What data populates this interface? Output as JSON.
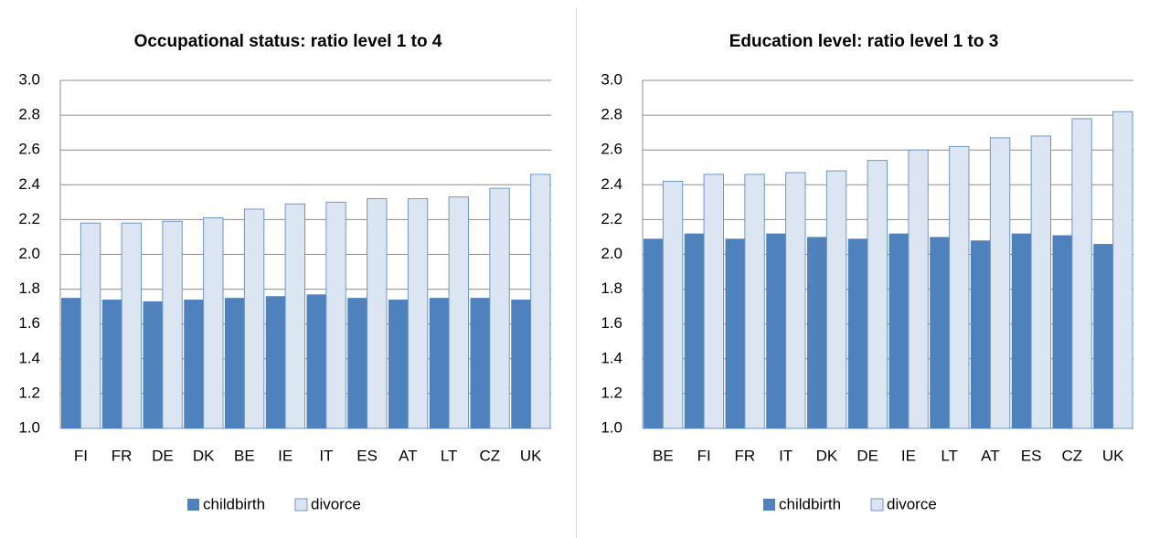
{
  "chart_data": [
    {
      "type": "bar",
      "title": "Occupational status: ratio level 1 to 4",
      "categories": [
        "FI",
        "FR",
        "DE",
        "DK",
        "BE",
        "IE",
        "IT",
        "ES",
        "AT",
        "LT",
        "CZ",
        "UK"
      ],
      "series": [
        {
          "name": "childbirth",
          "color": "#4f81bd",
          "values": [
            1.75,
            1.74,
            1.73,
            1.74,
            1.75,
            1.76,
            1.77,
            1.75,
            1.74,
            1.75,
            1.75,
            1.74
          ]
        },
        {
          "name": "divorce",
          "color": "#dce6f2",
          "values": [
            2.18,
            2.18,
            2.19,
            2.21,
            2.26,
            2.29,
            2.3,
            2.32,
            2.32,
            2.33,
            2.38,
            2.46
          ]
        }
      ],
      "bar_edgecolor": "#6f96c6",
      "ylim": [
        1.0,
        3.0
      ],
      "yticks": [
        {
          "value": 1.0,
          "label": "1.0"
        },
        1.2,
        1.4,
        1.6,
        1.8,
        {
          "value": 2.0,
          "label": "2.0"
        },
        2.2,
        2.4,
        2.6,
        2.8,
        {
          "value": 3.0,
          "label": "3.0"
        }
      ],
      "grid": true,
      "legend": "bottom"
    },
    {
      "type": "bar",
      "title": "Education level: ratio level 1 to 3",
      "categories": [
        "BE",
        "FI",
        "FR",
        "IT",
        "DK",
        "DE",
        "IE",
        "LT",
        "AT",
        "ES",
        "CZ",
        "UK"
      ],
      "series": [
        {
          "name": "childbirth",
          "color": "#4f81bd",
          "values": [
            2.09,
            2.12,
            2.09,
            2.12,
            2.1,
            2.09,
            2.12,
            2.1,
            2.08,
            2.12,
            2.11,
            2.06
          ]
        },
        {
          "name": "divorce",
          "color": "#dce6f2",
          "values": [
            2.42,
            2.46,
            2.46,
            2.47,
            2.48,
            2.54,
            2.6,
            2.62,
            2.67,
            2.68,
            2.78,
            2.82
          ]
        }
      ],
      "bar_edgecolor": "#6f96c6",
      "ylim": [
        1.0,
        3.0
      ],
      "yticks": [
        {
          "value": 1.0,
          "label": "1.0"
        },
        1.2,
        1.4,
        1.6,
        1.8,
        {
          "value": 2.0,
          "label": "2.0"
        },
        2.2,
        2.4,
        2.6,
        2.8,
        {
          "value": 3.0,
          "label": "3.0"
        }
      ],
      "grid": true,
      "legend": "bottom"
    }
  ]
}
